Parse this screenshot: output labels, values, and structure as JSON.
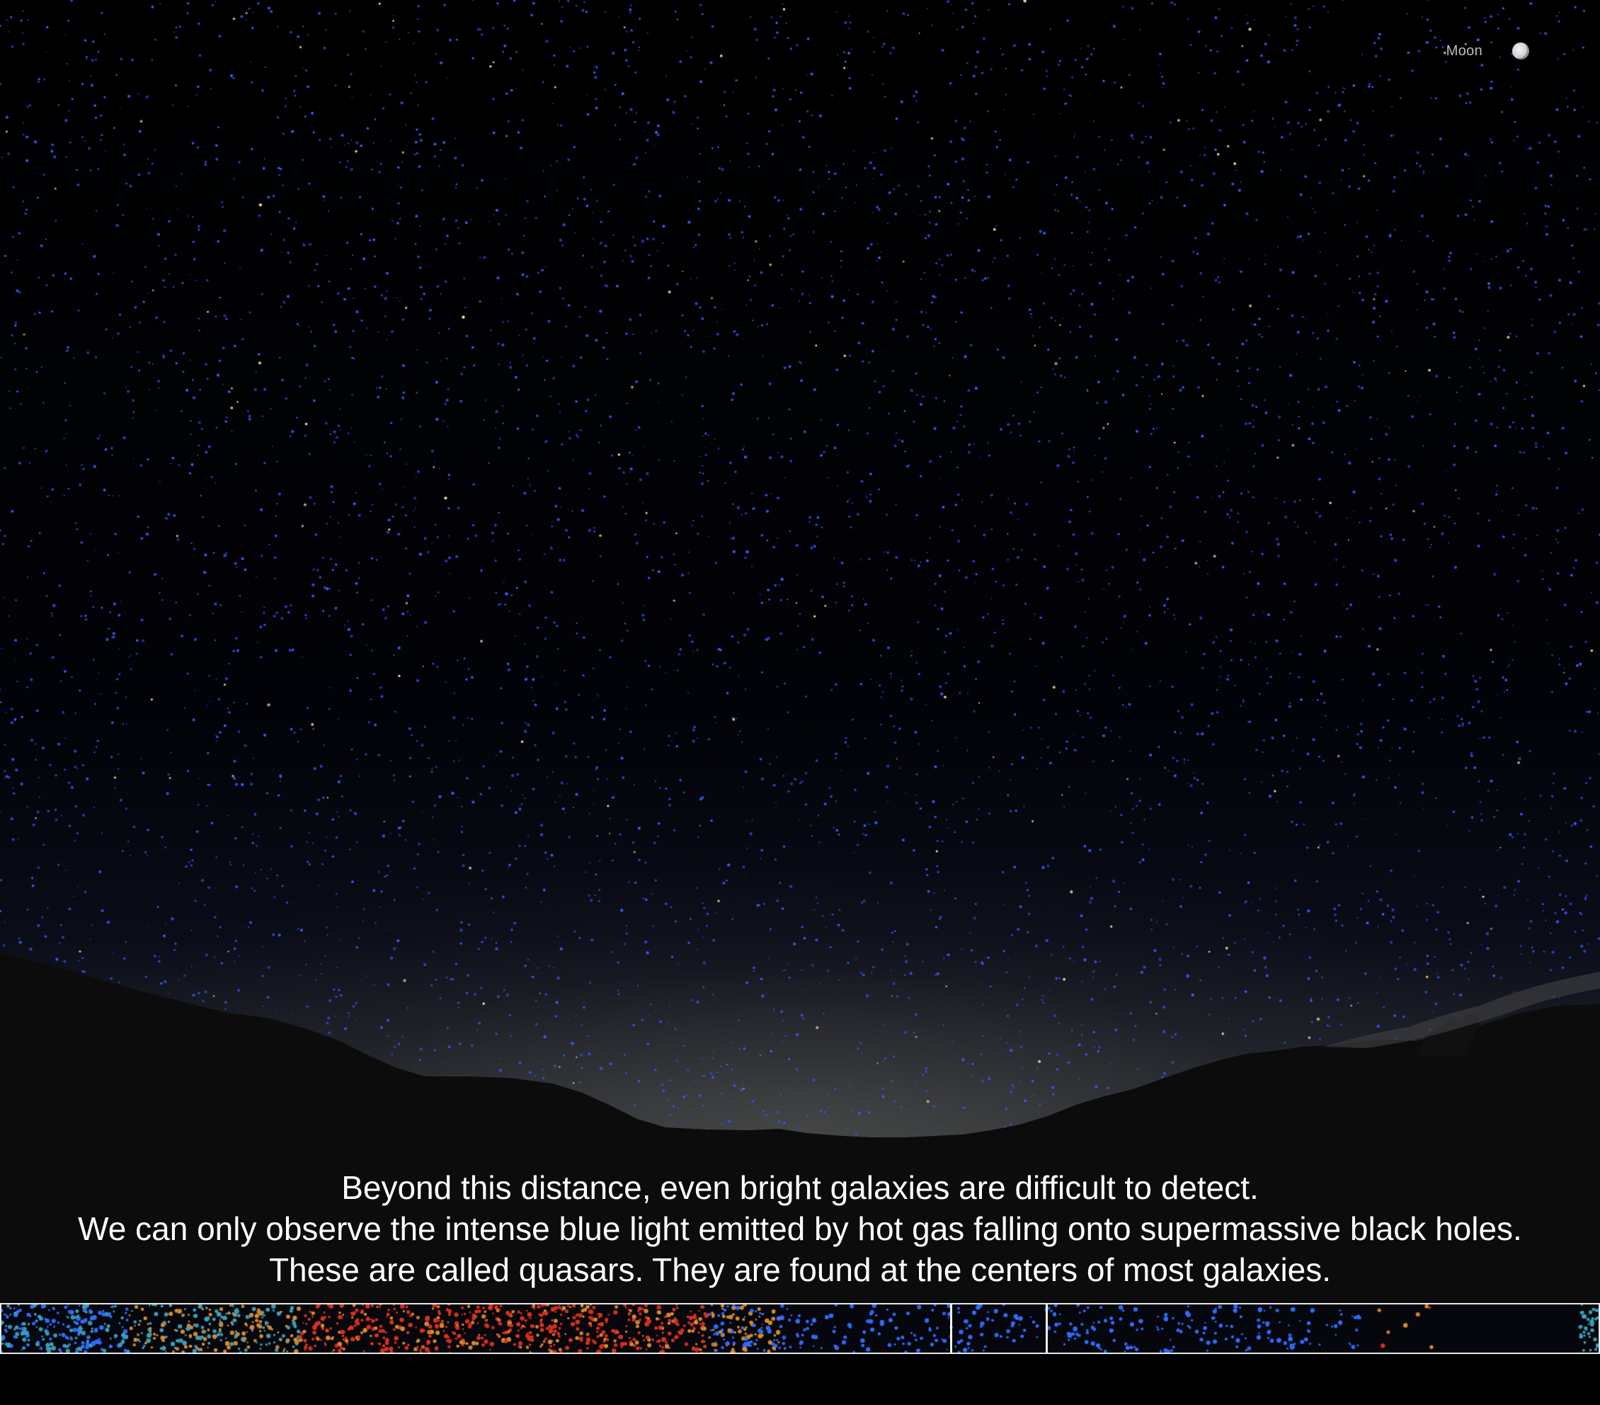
{
  "moon_toggle": {
    "label": "Moon",
    "icon": "moon-icon"
  },
  "caption": {
    "lines": [
      "Beyond this distance, even bright galaxies are difficult to detect.",
      "We can only observe the intense blue light emitted by hot gas falling onto supermassive black holes.",
      "These are called quasars. They are found at the centers of most galaxies."
    ]
  },
  "colors": {
    "sky_star": "#3a5cff",
    "warm_star": "#ffe7a0",
    "timeline_border": "#e8e8e8",
    "timeline_blue": "#2f6bff",
    "timeline_red": "#d8301f",
    "timeline_orange": "#d88a2a",
    "timeline_teal": "#3a9fb8"
  }
}
